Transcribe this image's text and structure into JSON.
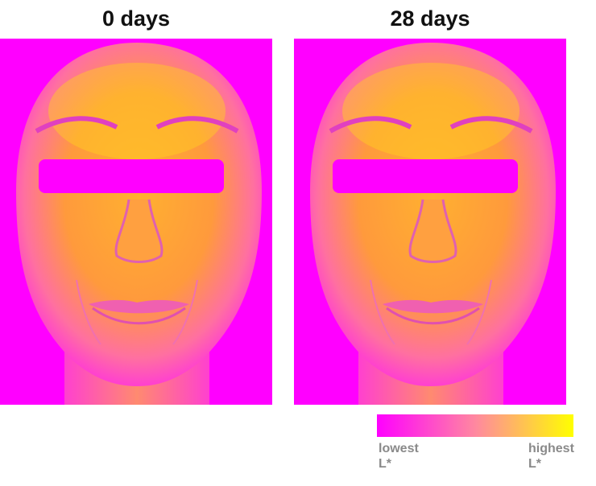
{
  "panels": [
    {
      "label": "0 days"
    },
    {
      "label": "28 days"
    }
  ],
  "colorbar": {
    "low_label": "lowest L*",
    "high_label": "highest L*"
  }
}
